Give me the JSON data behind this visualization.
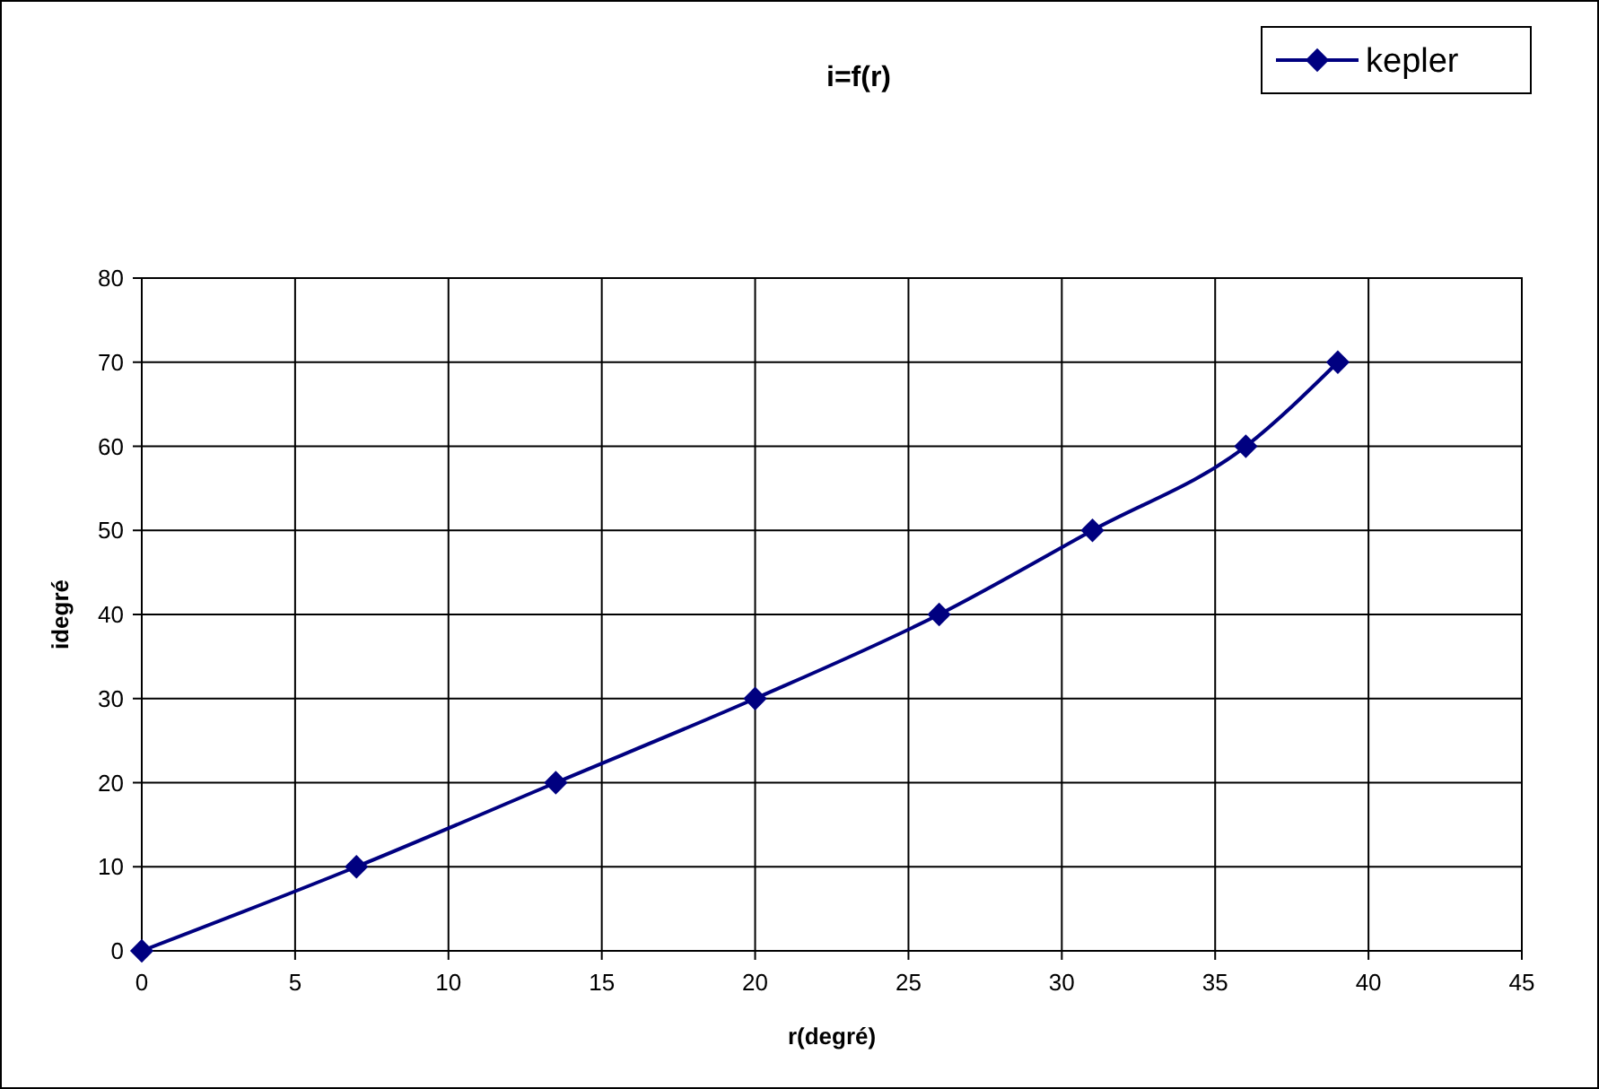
{
  "chart_data": {
    "type": "line",
    "title": "i=f(r)",
    "xlabel": "r(degré)",
    "ylabel": "idegré",
    "x": [
      0,
      7,
      13.5,
      20,
      26,
      31,
      36,
      39
    ],
    "series": [
      {
        "name": "kepler",
        "color": "#000080",
        "values": [
          0,
          10,
          20,
          30,
          40,
          50,
          60,
          70
        ]
      }
    ],
    "xlim": [
      0,
      45
    ],
    "xticks": [
      0,
      5,
      10,
      15,
      20,
      25,
      30,
      35,
      40,
      45
    ],
    "ylim": [
      0,
      80
    ],
    "yticks": [
      0,
      10,
      20,
      30,
      40,
      50,
      60,
      70,
      80
    ],
    "grid": true,
    "legend": "top right",
    "marker": "diamond",
    "line_style": "solid"
  }
}
